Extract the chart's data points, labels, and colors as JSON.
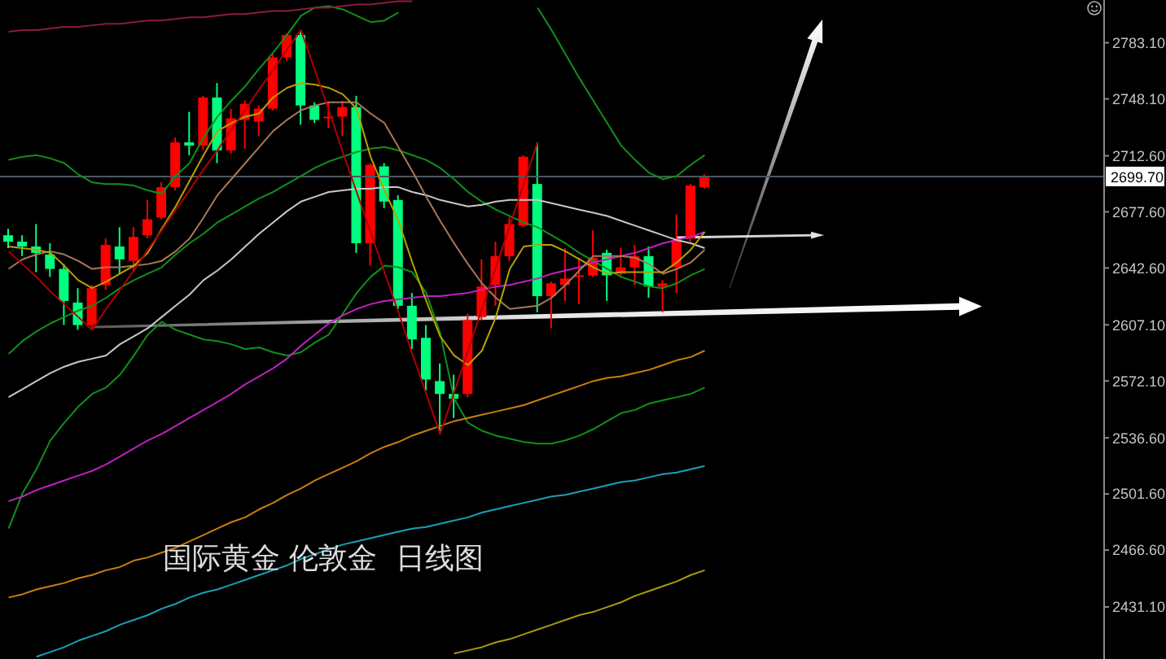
{
  "chart_data": {
    "type": "candlestick",
    "title": "国际黄金 伦敦金  日线图",
    "categories": [
      null,
      null,
      null,
      null,
      null,
      null,
      null,
      null,
      null,
      null,
      null,
      null,
      null,
      null,
      null,
      null,
      null,
      null,
      null,
      null,
      null,
      null,
      null,
      null,
      null,
      null,
      null,
      null,
      null,
      null,
      null,
      null,
      null,
      null,
      null,
      null,
      null,
      null,
      null,
      null,
      null,
      null,
      null,
      null,
      null,
      null,
      null,
      null,
      null,
      null,
      null
    ],
    "ohlc": [
      [
        2663,
        2667,
        2655,
        2659
      ],
      [
        2659,
        2663,
        2650,
        2656
      ],
      [
        2656,
        2670,
        2640,
        2652
      ],
      [
        2651,
        2658,
        2637,
        2642
      ],
      [
        2642,
        2645,
        2607,
        2622
      ],
      [
        2621,
        2630,
        2604,
        2607
      ],
      [
        2607,
        2632,
        2604,
        2630
      ],
      [
        2632,
        2661,
        2629,
        2657
      ],
      [
        2656,
        2668,
        2639,
        2648
      ],
      [
        2647,
        2668,
        2640,
        2662
      ],
      [
        2663,
        2685,
        2661,
        2673
      ],
      [
        2674,
        2696,
        2673,
        2693
      ],
      [
        2693,
        2724,
        2691,
        2721
      ],
      [
        2721,
        2740,
        2713,
        2719
      ],
      [
        2719,
        2750,
        2716,
        2749
      ],
      [
        2749,
        2758,
        2708,
        2716
      ],
      [
        2716,
        2742,
        2714,
        2736
      ],
      [
        2735,
        2747,
        2717,
        2745
      ],
      [
        2734,
        2744,
        2725,
        2742
      ],
      [
        2742,
        2776,
        2741,
        2774
      ],
      [
        2774,
        2789,
        2772,
        2788
      ],
      [
        2788,
        2791,
        2732,
        2744
      ],
      [
        2744,
        2746,
        2733,
        2735
      ],
      [
        2736,
        2746,
        2730,
        2737
      ],
      [
        2737,
        2747,
        2725,
        2743
      ],
      [
        2743,
        2750,
        2652,
        2658
      ],
      [
        2658,
        2708,
        2644,
        2707
      ],
      [
        2706,
        2708,
        2680,
        2684
      ],
      [
        2685,
        2688,
        2617,
        2619
      ],
      [
        2619,
        2627,
        2592,
        2598
      ],
      [
        2599,
        2607,
        2566,
        2573
      ],
      [
        2572,
        2583,
        2539,
        2564
      ],
      [
        2564,
        2576,
        2549,
        2561
      ],
      [
        2564,
        2614,
        2562,
        2610
      ],
      [
        2612,
        2648,
        2610,
        2631
      ],
      [
        2632,
        2659,
        2619,
        2650
      ],
      [
        2650,
        2674,
        2647,
        2670
      ],
      [
        2669,
        2713,
        2668,
        2712
      ],
      [
        2695,
        2721,
        2615,
        2625
      ],
      [
        2625,
        2634,
        2605,
        2633
      ],
      [
        2632,
        2655,
        2622,
        2636
      ],
      [
        2637,
        2649,
        2620,
        2638
      ],
      [
        2638,
        2666,
        2637,
        2649
      ],
      [
        2652,
        2654,
        2622,
        2638
      ],
      [
        2639,
        2655,
        2637,
        2643
      ],
      [
        2643,
        2657,
        2632,
        2650
      ],
      [
        2650,
        2656,
        2624,
        2631
      ],
      [
        2631,
        2635,
        2615,
        2633
      ],
      [
        2643,
        2676,
        2627,
        2660
      ],
      [
        2661,
        2695,
        2659,
        2694
      ],
      [
        2693,
        2701,
        2692,
        2699.7
      ]
    ],
    "colors": [
      "#00ff7f",
      "#00ff7f",
      "#00ff7f",
      "#00ff7f",
      "#00ff7f",
      "#00ff7f",
      "#ff0000",
      "#ff0000",
      "#00ff7f",
      "#ff0000",
      "#ff0000",
      "#ff0000",
      "#ff0000",
      "#00ff7f",
      "#ff0000",
      "#00ff7f",
      "#ff0000",
      "#ff0000",
      "#ff0000",
      "#ff0000",
      "#ff0000",
      "#00ff7f",
      "#00ff7f",
      "#ff0000",
      "#ff0000",
      "#00ff7f",
      "#ff0000",
      "#00ff7f",
      "#00ff7f",
      "#00ff7f",
      "#00ff7f",
      "#00ff7f",
      "#00ff7f",
      "#ff0000",
      "#ff0000",
      "#ff0000",
      "#ff0000",
      "#ff0000",
      "#00ff7f",
      "#ff0000",
      "#ff0000",
      "#ff0000",
      "#ff0000",
      "#00ff7f",
      "#ff0000",
      "#ff0000",
      "#00ff7f",
      "#ff0000",
      "#ff0000",
      "#ff0000",
      "#ff0000"
    ],
    "series": [
      {
        "type": "line",
        "color": "#10901a",
        "values": [
          2710,
          2712,
          2713,
          2711,
          2708,
          2701,
          2696,
          2695,
          2695,
          2694,
          2691,
          2689,
          2700,
          2708,
          2724,
          2737,
          2747,
          2756,
          2767,
          2777,
          2788,
          2800,
          2805,
          2806,
          2804,
          2800,
          2796,
          2797,
          2802,
          null,
          null,
          null,
          null,
          null,
          null,
          null,
          null,
          null,
          2805,
          2791,
          2776,
          2761,
          2747,
          2733,
          2719,
          2710,
          2702,
          2698,
          2700,
          2707,
          2713
        ]
      },
      {
        "type": "line",
        "color": "#10901a",
        "values": [
          2589,
          2597,
          2603,
          2608,
          2612,
          2616,
          2619,
          2624,
          2630,
          2635,
          2639,
          2643,
          2651,
          2658,
          2664,
          2671,
          2676,
          2681,
          2686,
          2690,
          2695,
          2700,
          2705,
          2709,
          2712,
          2715,
          2717,
          2718,
          2716,
          2713,
          2710,
          2705,
          2698,
          2690,
          2684,
          2679,
          2675,
          2671,
          2668,
          2663,
          2658,
          2652,
          2647,
          2642,
          2637,
          2634,
          2631,
          2630,
          2633,
          2638,
          2642
        ]
      },
      {
        "type": "line",
        "color": "#10901a",
        "values": [
          2480,
          2502,
          2517,
          2535,
          2546,
          2556,
          2564,
          2568,
          2576,
          2588,
          2601,
          2609,
          2604,
          2601,
          2598,
          2597,
          2595,
          2592,
          2593,
          2590,
          2588,
          2590,
          2596,
          2601,
          2614,
          2627,
          2637,
          2644,
          2643,
          2640,
          2627,
          2602,
          2561,
          2546,
          2541,
          2538,
          2536,
          2534,
          2533,
          2533,
          2535,
          2538,
          2542,
          2547,
          2552,
          2554,
          2558,
          2560,
          2562,
          2564,
          2568
        ]
      },
      {
        "type": "line",
        "color": "#1aa0b4",
        "values": [
          null,
          null,
          2400,
          2403,
          2406,
          2410,
          2413,
          2416,
          2420,
          2423,
          2426,
          2430,
          2433,
          2437,
          2440,
          2442,
          2445,
          2448,
          2451,
          2454,
          2457,
          2461,
          2464,
          2467,
          2470,
          2472,
          2474,
          2476,
          2478,
          2480,
          2481,
          2483,
          2485,
          2487,
          2490,
          2492,
          2494,
          2496,
          2498,
          2500,
          2501,
          2503,
          2505,
          2507,
          2509,
          2510,
          2512,
          2514,
          2515,
          2517,
          2519
        ]
      },
      {
        "type": "line",
        "color": "#a89a10",
        "values": [
          null,
          null,
          null,
          null,
          null,
          null,
          null,
          null,
          null,
          null,
          null,
          null,
          null,
          null,
          null,
          null,
          null,
          null,
          null,
          null,
          null,
          null,
          null,
          null,
          null,
          null,
          null,
          null,
          null,
          null,
          null,
          null,
          2402,
          2404,
          2406,
          2409,
          2411,
          2414,
          2417,
          2420,
          2423,
          2426,
          2428,
          2431,
          2434,
          2438,
          2441,
          2444,
          2447,
          2451,
          2454
        ]
      },
      {
        "type": "line",
        "color": "#c87f10",
        "values": [
          2437,
          2439,
          2442,
          2444,
          2446,
          2449,
          2451,
          2454,
          2456,
          2460,
          2462,
          2465,
          2468,
          2472,
          2476,
          2480,
          2484,
          2487,
          2492,
          2496,
          2501,
          2505,
          2510,
          2514,
          2518,
          2522,
          2527,
          2531,
          2534,
          2538,
          2541,
          2544,
          2547,
          2549,
          2551,
          2553,
          2555,
          2557,
          2560,
          2563,
          2566,
          2569,
          2572,
          2574,
          2575,
          2577,
          2579,
          2582,
          2585,
          2587,
          2591
        ]
      },
      {
        "type": "line",
        "color": "#c020c0",
        "values": [
          2497,
          2500,
          2504,
          2507,
          2510,
          2513,
          2516,
          2520,
          2525,
          2530,
          2535,
          2539,
          2544,
          2549,
          2554,
          2559,
          2564,
          2570,
          2575,
          2580,
          2586,
          2594,
          2601,
          2608,
          2613,
          2617,
          2620,
          2622,
          2623,
          2624,
          2625,
          2625,
          2626,
          2627,
          2629,
          2631,
          2632,
          2634,
          2636,
          2639,
          2641,
          2643,
          2646,
          2648,
          2650,
          2652,
          2655,
          2658,
          2660,
          2662,
          2665
        ]
      },
      {
        "type": "line",
        "color": "#c8c8c8",
        "values": [
          2562,
          2567,
          2572,
          2577,
          2581,
          2584,
          2586,
          2588,
          2595,
          2600,
          2605,
          2612,
          2619,
          2626,
          2635,
          2641,
          2648,
          2656,
          2664,
          2671,
          2678,
          2684,
          2687,
          2690,
          2691,
          2692,
          2692,
          2693,
          2693,
          2690,
          2688,
          2685,
          2683,
          2681,
          2682,
          2684,
          2685,
          2685,
          2685,
          2683,
          2681,
          2679,
          2677,
          2675,
          2672,
          2669,
          2666,
          2663,
          2660,
          2658,
          2655
        ]
      },
      {
        "type": "line",
        "color": "#a87858",
        "values": [
          2642,
          2648,
          2651,
          2653,
          2651,
          2647,
          2642,
          2643,
          2643,
          2644,
          2645,
          2647,
          2653,
          2661,
          2674,
          2688,
          2698,
          2708,
          2718,
          2728,
          2735,
          2741,
          2744,
          2746,
          2746,
          2746,
          2739,
          2733,
          2718,
          2703,
          2687,
          2672,
          2658,
          2645,
          2633,
          2624,
          2617,
          2618,
          2619,
          2624,
          2632,
          2641,
          2650,
          2650,
          2650,
          2649,
          2645,
          2639,
          2642,
          2646,
          2654
        ]
      },
      {
        "type": "line",
        "color": "#b8a000",
        "values": [
          2656,
          2655,
          2654,
          2652,
          2644,
          2635,
          2630,
          2634,
          2639,
          2644,
          2652,
          2667,
          2681,
          2697,
          2713,
          2728,
          2733,
          2737,
          2739,
          2749,
          2755,
          2758,
          2757,
          2755,
          2751,
          2742,
          2712,
          2691,
          2672,
          2646,
          2622,
          2600,
          2588,
          2582,
          2591,
          2612,
          2642,
          2656,
          2657,
          2657,
          2653,
          2648,
          2643,
          2639,
          2640,
          2640,
          2640,
          2640,
          2646,
          2654,
          2665
        ]
      },
      {
        "type": "line",
        "color": "#b00000",
        "values": [
          2653,
          2645,
          2637,
          2628,
          2620,
          2612,
          2604,
          2617,
          2629,
          2641,
          2654,
          2666,
          2679,
          2691,
          2704,
          2716,
          2729,
          2741,
          2754,
          2766,
          2779,
          2791,
          2766,
          2741,
          2715,
          2690,
          2665,
          2640,
          2615,
          2589,
          2564,
          2539,
          2565,
          2591,
          2617,
          2643,
          2669,
          2695,
          2721,
          null,
          null,
          null,
          null,
          null,
          null,
          null,
          null,
          null,
          null,
          null,
          null
        ]
      },
      {
        "type": "line",
        "color": "#8a1c3c",
        "values": [
          2790,
          2791,
          2791,
          2792,
          2793,
          2793,
          2794,
          2795,
          2795,
          2796,
          2797,
          2797,
          2798,
          2799,
          2799,
          2800,
          2801,
          2801,
          2802,
          2803,
          2803,
          2804,
          2805,
          2805,
          2806,
          2807,
          2807,
          2808,
          2809,
          2809,
          null,
          null,
          null,
          null,
          null,
          null,
          null,
          null,
          null,
          null,
          null,
          null,
          null,
          null,
          null,
          null,
          null,
          null,
          null,
          null,
          null
        ]
      }
    ],
    "ylim": [
      2398.6,
      2809.8
    ],
    "yticks": [
      {
        "value": 2783.1,
        "label": "2783.10"
      },
      {
        "value": 2748.1,
        "label": "2748.10"
      },
      {
        "value": 2712.6,
        "label": "2712.60"
      },
      {
        "value": 2677.6,
        "label": "2677.60"
      },
      {
        "value": 2642.6,
        "label": "2642.60"
      },
      {
        "value": 2607.1,
        "label": "2607.10"
      },
      {
        "value": 2572.1,
        "label": "2572.10"
      },
      {
        "value": 2536.6,
        "label": "2536.60"
      },
      {
        "value": 2501.6,
        "label": "2501.60"
      },
      {
        "value": 2466.6,
        "label": "2466.60"
      },
      {
        "value": 2431.1,
        "label": "2431.10"
      }
    ],
    "ref_lines": [
      {
        "axis": "y",
        "value": 2699.7,
        "label": "2699.70",
        "color": "#4b5661"
      }
    ],
    "tick_labels": "y",
    "marker": "none"
  }
}
